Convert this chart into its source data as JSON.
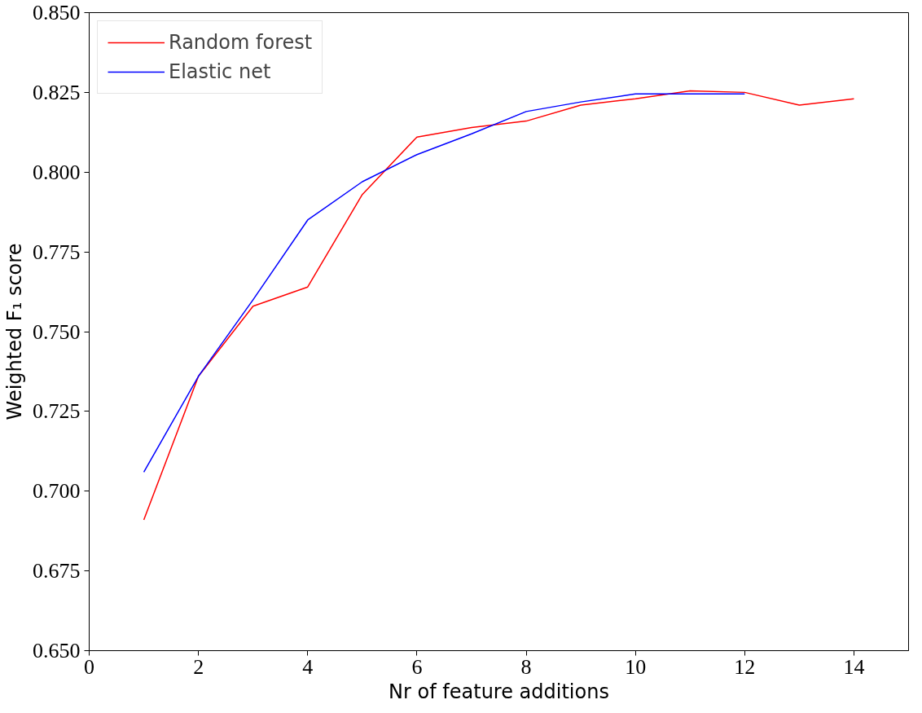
{
  "chart_data": {
    "type": "line",
    "xlabel": "Nr of feature additions",
    "ylabel": "Weighted F₁ score",
    "xlim": [
      0,
      15
    ],
    "ylim": [
      0.65,
      0.85
    ],
    "xticks": [
      0,
      2,
      4,
      6,
      8,
      10,
      12,
      14
    ],
    "yticks": [
      {
        "value": 0.65,
        "label": "0.650"
      },
      {
        "value": 0.675,
        "label": "0.675"
      },
      {
        "value": 0.7,
        "label": "0.700"
      },
      {
        "value": 0.725,
        "label": "0.725"
      },
      {
        "value": 0.75,
        "label": "0.750"
      },
      {
        "value": 0.775,
        "label": "0.775"
      },
      {
        "value": 0.8,
        "label": "0.800"
      },
      {
        "value": 0.825,
        "label": "0.825"
      },
      {
        "value": 0.85,
        "label": "0.850"
      }
    ],
    "grid": false,
    "legend": "top left",
    "line_style": "solid",
    "series": [
      {
        "name": "Random forest",
        "color": "#ff0000",
        "x": [
          1,
          2,
          3,
          4,
          5,
          6,
          7,
          8,
          9,
          10,
          11,
          12,
          13,
          14
        ],
        "values": [
          0.691,
          0.736,
          0.758,
          0.764,
          0.793,
          0.811,
          0.814,
          0.816,
          0.821,
          0.823,
          0.8255,
          0.825,
          0.821,
          0.823
        ]
      },
      {
        "name": "Elastic net",
        "color": "#0000ff",
        "x": [
          1,
          2,
          3,
          4,
          5,
          6,
          7,
          8,
          9,
          10,
          11,
          12
        ],
        "values": [
          0.706,
          0.736,
          0.76,
          0.785,
          0.797,
          0.8055,
          0.812,
          0.819,
          0.822,
          0.8245,
          0.8245,
          0.8245
        ]
      }
    ]
  }
}
